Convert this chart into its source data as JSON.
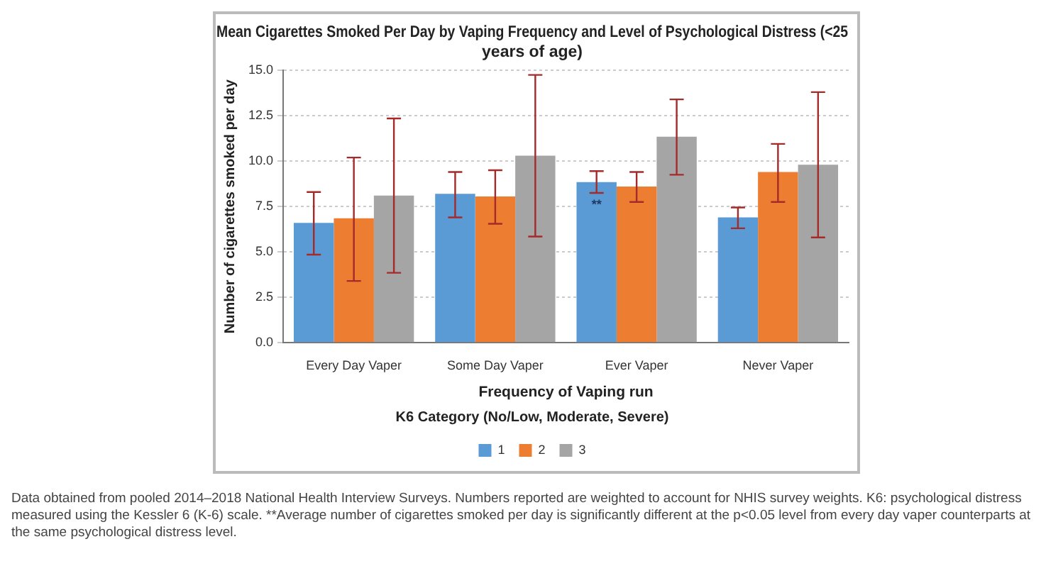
{
  "chart_data": {
    "type": "bar",
    "title": "Mean Cigarettes Smoked Per Day by Vaping Frequency and Level of Psychological Distress (<25 years of age)",
    "xlabel": "Frequency of Vaping run",
    "ylabel": "Number of cigarettes smoked per day",
    "legend_title": "K6 Category (No/Low, Moderate, Severe)",
    "categories": [
      "Every Day Vaper",
      "Some Day Vaper",
      "Ever Vaper",
      "Never Vaper"
    ],
    "series": [
      {
        "name": "1",
        "color": "#5b9bd5",
        "values": [
          6.6,
          8.2,
          8.85,
          6.9
        ],
        "errors": [
          [
            4.85,
            8.3
          ],
          [
            6.9,
            9.4
          ],
          [
            8.25,
            9.45
          ],
          [
            6.3,
            7.45
          ]
        ]
      },
      {
        "name": "2",
        "color": "#ed7d31",
        "values": [
          6.85,
          8.05,
          8.6,
          9.4
        ],
        "errors": [
          [
            3.4,
            10.2
          ],
          [
            6.55,
            9.5
          ],
          [
            7.75,
            9.4
          ],
          [
            7.75,
            10.95
          ]
        ]
      },
      {
        "name": "3",
        "color": "#a5a5a5",
        "values": [
          8.1,
          10.3,
          11.35,
          9.8
        ],
        "errors": [
          [
            3.85,
            12.35
          ],
          [
            5.85,
            14.75
          ],
          [
            9.25,
            13.4
          ],
          [
            5.8,
            13.8
          ]
        ]
      }
    ],
    "ylim": [
      0,
      15
    ],
    "yticks": [
      {
        "value": 0,
        "label": "0.0"
      },
      {
        "value": 2.5,
        "label": "2.5"
      },
      {
        "value": 5,
        "label": "5.0"
      },
      {
        "value": 7.5,
        "label": "7.5"
      },
      {
        "value": 10,
        "label": "10.0"
      },
      {
        "value": 12.5,
        "label": "12.5"
      },
      {
        "value": 15,
        "label": "15.0"
      }
    ],
    "grid": "y",
    "legend": "bottom",
    "annotations": [
      {
        "text": "**",
        "x": "Ever Vaper",
        "y": 7.6
      },
      "Data obtained from pooled 2014–2018 National Health Interview Surveys. Numbers reported are weighted to account for NHIS survey weights. K6: psychological distress measured using the Kessler 6 (K-6) scale. **Average number of cigarettes smoked per day is significantly different at the p<0.05 level from every day vaper counterparts at the same psychological distress level."
    ]
  }
}
